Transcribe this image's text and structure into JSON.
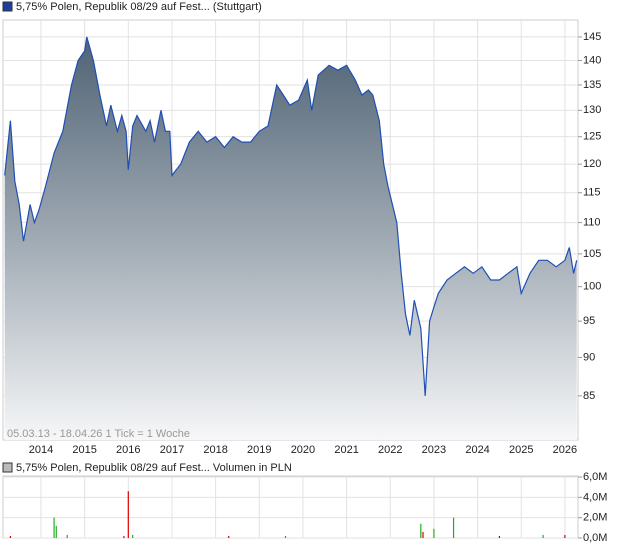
{
  "chart_data": [
    {
      "type": "area",
      "log_scale": true,
      "grid": true,
      "note": "05.03.13 - 18.04.26   1 Tick = 1 Woche",
      "x": [
        2013.17,
        2013.3,
        2013.4,
        2013.5,
        2013.6,
        2013.75,
        2013.85,
        2013.95,
        2014.1,
        2014.3,
        2014.5,
        2014.7,
        2014.85,
        2015.0,
        2015.05,
        2015.2,
        2015.35,
        2015.5,
        2015.6,
        2015.75,
        2015.85,
        2015.95,
        2016.0,
        2016.1,
        2016.2,
        2016.4,
        2016.5,
        2016.6,
        2016.75,
        2016.85,
        2016.95,
        2017.0,
        2017.1,
        2017.2,
        2017.4,
        2017.6,
        2017.8,
        2018.0,
        2018.2,
        2018.4,
        2018.6,
        2018.8,
        2019.0,
        2019.2,
        2019.4,
        2019.55,
        2019.7,
        2019.9,
        2020.1,
        2020.2,
        2020.35,
        2020.6,
        2020.8,
        2021.0,
        2021.2,
        2021.35,
        2021.5,
        2021.6,
        2021.75,
        2021.85,
        2021.95,
        2022.05,
        2022.15,
        2022.25,
        2022.35,
        2022.45,
        2022.55,
        2022.7,
        2022.8,
        2022.9,
        2023.0,
        2023.1,
        2023.3,
        2023.5,
        2023.7,
        2023.9,
        2024.1,
        2024.3,
        2024.5,
        2024.7,
        2024.9,
        2025.0,
        2025.2,
        2025.4,
        2025.6,
        2025.8,
        2026.0,
        2026.1,
        2026.2,
        2026.27
      ],
      "series": [
        {
          "name": "5,75% Polen, Republik 08/29 auf Fest... (Stuttgart)",
          "color": "#1f4fb4",
          "values": [
            118,
            128,
            117,
            113,
            107,
            113,
            110,
            112,
            116,
            122,
            126,
            135,
            140,
            142,
            145,
            140,
            133,
            127,
            131,
            126,
            129,
            126,
            119,
            127,
            129,
            126,
            128,
            124,
            130,
            126,
            126,
            118,
            119,
            120,
            124,
            126,
            124,
            125,
            123,
            125,
            124,
            124,
            126,
            127,
            135,
            133,
            131,
            132,
            136,
            130,
            137,
            139,
            138,
            139,
            136,
            133,
            134,
            133,
            128,
            120,
            116,
            113,
            110,
            102,
            96,
            93,
            98,
            94,
            85,
            95,
            97,
            99,
            101,
            102,
            103,
            102,
            103,
            101,
            101,
            102,
            103,
            99,
            102,
            104,
            104,
            103,
            104,
            106,
            102,
            104
          ]
        }
      ],
      "xlim": [
        2013.13,
        2026.3
      ],
      "xticks": [
        2014,
        2015,
        2016,
        2017,
        2018,
        2019,
        2020,
        2021,
        2022,
        2023,
        2024,
        2025,
        2026
      ],
      "ylim": [
        79.6,
        148.7
      ],
      "yticks": [
        85,
        90,
        95,
        100,
        105,
        110,
        115,
        120,
        125,
        130,
        135,
        140,
        145
      ]
    },
    {
      "type": "bar",
      "grid": true,
      "x": [
        2013.3,
        2014.3,
        2014.35,
        2014.6,
        2015.9,
        2016.0,
        2016.1,
        2018.3,
        2019.6,
        2022.7,
        2022.75,
        2023.0,
        2023.45,
        2024.5,
        2025.5,
        2026.0
      ],
      "series": [
        {
          "name": "5,75% Polen, Republik 08/29 auf Fest... Volumen in PLN",
          "color": "#999999",
          "values": [
            0.2,
            2.0,
            1.2,
            0.3,
            0.2,
            4.6,
            0.3,
            0.2,
            0.2,
            1.4,
            0.6,
            0.9,
            2.0,
            0.2,
            0.3,
            0.3
          ],
          "colors": [
            "#d00",
            "#2a2",
            "#2a2",
            "#2a2",
            "#d00",
            "#d00",
            "#2a2",
            "#d00",
            "#2a2",
            "#2a2",
            "#d00",
            "#2a2",
            "#2a2",
            "#d00",
            "#2a2",
            "#d00"
          ]
        }
      ],
      "xlim": [
        2013.13,
        2026.3
      ],
      "ylim": [
        0,
        6.1
      ],
      "yticks": [
        {
          "value": 0,
          "label": "0,0M"
        },
        {
          "value": 2,
          "label": "2,0M"
        },
        {
          "value": 4,
          "label": "4,0M"
        },
        {
          "value": 6,
          "label": "6,0M"
        }
      ]
    }
  ]
}
